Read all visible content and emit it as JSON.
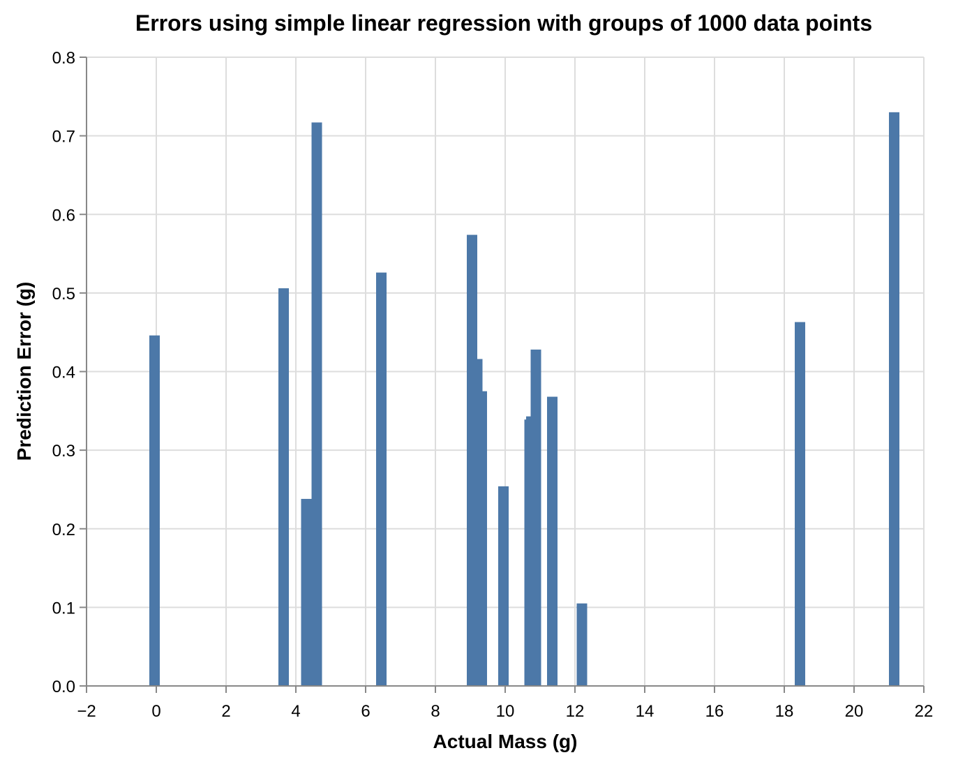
{
  "chart_data": {
    "type": "bar",
    "title": "Errors using simple linear regression with groups of 1000 data points",
    "xlabel": "Actual Mass (g)",
    "ylabel": "Prediction Error (g)",
    "xlim": [
      -2,
      22
    ],
    "ylim": [
      0,
      0.8
    ],
    "x_ticks": [
      -2,
      0,
      2,
      4,
      6,
      8,
      10,
      12,
      14,
      16,
      18,
      20,
      22
    ],
    "x_tick_labels": [
      "−2",
      "0",
      "2",
      "4",
      "6",
      "8",
      "10",
      "12",
      "14",
      "16",
      "18",
      "20",
      "22"
    ],
    "y_ticks": [
      0,
      0.1,
      0.2,
      0.3,
      0.4,
      0.5,
      0.6,
      0.7,
      0.8
    ],
    "y_tick_labels": [
      "0.0",
      "0.1",
      "0.2",
      "0.3",
      "0.4",
      "0.5",
      "0.6",
      "0.7",
      "0.8"
    ],
    "grid": true,
    "bar_color": "#4c78a8",
    "bar_width": 0.3,
    "points": [
      {
        "x": -0.05,
        "y": 0.446
      },
      {
        "x": 3.65,
        "y": 0.506
      },
      {
        "x": 4.3,
        "y": 0.238
      },
      {
        "x": 4.6,
        "y": 0.717
      },
      {
        "x": 6.45,
        "y": 0.526
      },
      {
        "x": 9.05,
        "y": 0.574
      },
      {
        "x": 9.2,
        "y": 0.416
      },
      {
        "x": 9.33,
        "y": 0.375
      },
      {
        "x": 9.95,
        "y": 0.254
      },
      {
        "x": 10.7,
        "y": 0.339
      },
      {
        "x": 10.75,
        "y": 0.343
      },
      {
        "x": 10.88,
        "y": 0.428
      },
      {
        "x": 11.35,
        "y": 0.368
      },
      {
        "x": 12.2,
        "y": 0.105
      },
      {
        "x": 18.45,
        "y": 0.463
      },
      {
        "x": 21.15,
        "y": 0.73
      }
    ]
  }
}
